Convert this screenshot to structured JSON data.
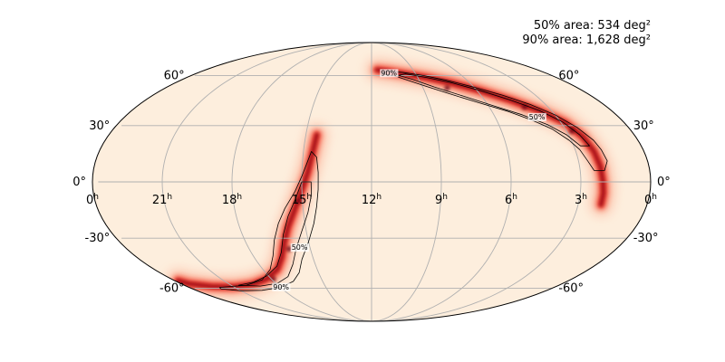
{
  "chart_data": {
    "type": "heatmap",
    "projection": "mollweide",
    "grid": true,
    "colormap": [
      "#fdeedd",
      "#fc9272",
      "#ef3b2c",
      "#a50f15",
      "#67000d"
    ],
    "annotations": [
      "50% area: 534 deg²",
      "90% area: 1,628 deg²"
    ],
    "lon_ticks": [
      {
        "hours": 0,
        "text": "0",
        "sup": "h"
      },
      {
        "hours": 21,
        "text": "21",
        "sup": "h"
      },
      {
        "hours": 18,
        "text": "18",
        "sup": "h"
      },
      {
        "hours": 15,
        "text": "15",
        "sup": "h"
      },
      {
        "hours": 12,
        "text": "12",
        "sup": "h"
      },
      {
        "hours": 9,
        "text": "9",
        "sup": "h"
      },
      {
        "hours": 6,
        "text": "6",
        "sup": "h"
      },
      {
        "hours": 3,
        "text": "3",
        "sup": "h"
      },
      {
        "hours": 0,
        "text": "0",
        "sup": "h",
        "side": "right"
      }
    ],
    "lat_ticks": [
      {
        "deg": 60,
        "text": "60°"
      },
      {
        "deg": 30,
        "text": "30°"
      },
      {
        "deg": 0,
        "text": "0°"
      },
      {
        "deg": -30,
        "text": "-30°"
      },
      {
        "deg": -60,
        "text": "-60°"
      }
    ],
    "contour_labels": [
      {
        "text": "90%",
        "ra_h": 10.8,
        "dec": 62
      },
      {
        "text": "50%",
        "ra_h": 3.95,
        "dec": 35
      },
      {
        "text": "50%",
        "ra_h": 15.5,
        "dec": -35
      },
      {
        "text": "90%",
        "ra_h": 17.9,
        "dec": -59
      }
    ],
    "contours": [
      {
        "level": "90%",
        "points_ra_dec": [
          [
            10.8,
            63
          ],
          [
            9.8,
            62.2
          ],
          [
            8.5,
            60
          ],
          [
            7.3,
            57
          ],
          [
            6.0,
            52.5
          ],
          [
            4.8,
            47.5
          ],
          [
            3.8,
            42
          ],
          [
            3.0,
            36
          ],
          [
            2.4,
            29
          ],
          [
            2.0,
            22
          ],
          [
            1.85,
            17
          ],
          [
            1.75,
            11
          ],
          [
            1.95,
            6
          ],
          [
            2.4,
            6
          ],
          [
            2.6,
            11
          ],
          [
            2.8,
            17
          ],
          [
            3.1,
            22
          ],
          [
            3.6,
            28
          ],
          [
            4.3,
            33
          ],
          [
            5.2,
            38
          ],
          [
            6.4,
            43
          ],
          [
            7.7,
            48.5
          ],
          [
            8.9,
            53.5
          ],
          [
            10.0,
            58
          ],
          [
            10.5,
            60
          ],
          [
            11.0,
            60.5
          ],
          [
            11.3,
            61.5
          ],
          [
            11.0,
            63
          ]
        ]
      },
      {
        "level": "50%",
        "points_ra_dec": [
          [
            9.7,
            61.2
          ],
          [
            8.4,
            58.7
          ],
          [
            7.1,
            55.3
          ],
          [
            5.8,
            50.3
          ],
          [
            4.6,
            44.5
          ],
          [
            3.6,
            38.5
          ],
          [
            2.9,
            32
          ],
          [
            2.5,
            25
          ],
          [
            2.3,
            19
          ],
          [
            2.7,
            19
          ],
          [
            3.1,
            25
          ],
          [
            3.7,
            30.5
          ],
          [
            4.6,
            36
          ],
          [
            5.8,
            41.5
          ],
          [
            7.0,
            47
          ],
          [
            8.3,
            52.5
          ],
          [
            9.4,
            57.5
          ],
          [
            10.2,
            60.2
          ]
        ]
      },
      {
        "level": "90%",
        "points_ra_dec": [
          [
            14.65,
            16
          ],
          [
            14.8,
            10
          ],
          [
            15.0,
            3
          ],
          [
            15.3,
            -5
          ],
          [
            15.8,
            -14
          ],
          [
            16.2,
            -22
          ],
          [
            16.6,
            -31
          ],
          [
            17.0,
            -40
          ],
          [
            17.6,
            -48
          ],
          [
            18.6,
            -54.5
          ],
          [
            20.0,
            -58
          ],
          [
            21.3,
            -59
          ],
          [
            22.0,
            -59.5
          ],
          [
            22.1,
            -60.5
          ],
          [
            21.0,
            -61.8
          ],
          [
            19.5,
            -61.5
          ],
          [
            18.0,
            -59.5
          ],
          [
            16.8,
            -55.5
          ],
          [
            16.1,
            -50
          ],
          [
            15.6,
            -42
          ],
          [
            15.0,
            -32
          ],
          [
            14.6,
            -22
          ],
          [
            14.4,
            -13
          ],
          [
            14.3,
            -4
          ],
          [
            14.3,
            5
          ],
          [
            14.4,
            13
          ]
        ]
      },
      {
        "level": "50%",
        "points_ra_dec": [
          [
            15.0,
            0
          ],
          [
            15.3,
            -9
          ],
          [
            15.7,
            -18
          ],
          [
            16.1,
            -28
          ],
          [
            16.5,
            -38
          ],
          [
            17.1,
            -46
          ],
          [
            18.1,
            -52
          ],
          [
            19.3,
            -56
          ],
          [
            20.5,
            -58
          ],
          [
            19.2,
            -58.6
          ],
          [
            17.9,
            -56.8
          ],
          [
            16.9,
            -52.5
          ],
          [
            16.2,
            -45
          ],
          [
            15.7,
            -36
          ],
          [
            15.2,
            -26
          ],
          [
            14.8,
            -16
          ],
          [
            14.6,
            -7
          ],
          [
            14.6,
            0
          ]
        ]
      }
    ],
    "probability_bands": [
      {
        "region": "north",
        "path_ra_dec": [
          [
            11.6,
            64
          ],
          [
            10.8,
            63
          ],
          [
            9.7,
            61
          ],
          [
            8.4,
            58.6
          ],
          [
            7.1,
            55.1
          ],
          [
            5.8,
            50.2
          ],
          [
            4.6,
            44.4
          ],
          [
            3.6,
            38.3
          ],
          [
            2.8,
            31.5
          ],
          [
            2.4,
            24
          ],
          [
            2.2,
            16
          ],
          [
            2.1,
            8
          ],
          [
            2.05,
            0
          ],
          [
            2.0,
            -6
          ],
          [
            2.0,
            -12
          ]
        ],
        "peak_ra_dec": [
          [
            7.6,
            52
          ],
          [
            4.2,
            40.5
          ],
          [
            2.75,
            27
          ]
        ]
      },
      {
        "region": "south",
        "path_ra_dec": [
          [
            14.5,
            25
          ],
          [
            14.6,
            15
          ],
          [
            14.75,
            5
          ],
          [
            15.0,
            -4
          ],
          [
            15.35,
            -14
          ],
          [
            15.8,
            -24
          ],
          [
            16.2,
            -33
          ],
          [
            16.6,
            -41
          ],
          [
            17.2,
            -48
          ],
          [
            18.3,
            -54
          ],
          [
            19.6,
            -57.6
          ],
          [
            21.0,
            -59.2
          ],
          [
            22.4,
            -58.8
          ],
          [
            23.5,
            -57
          ],
          [
            23.8,
            -55
          ]
        ],
        "peak_ra_dec": [
          [
            15.15,
            -10
          ],
          [
            16.05,
            -36
          ],
          [
            17.9,
            -54
          ]
        ]
      }
    ]
  }
}
